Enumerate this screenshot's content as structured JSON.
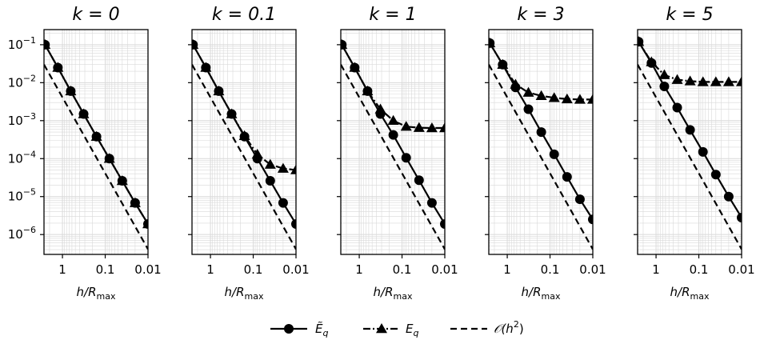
{
  "chart_data": [
    {
      "type": "line",
      "title": "k = 0",
      "xlabel": "h/R_max",
      "ylabel": "",
      "x_scale": "log",
      "x_reversed": true,
      "x_range": [
        2.7,
        0.01
      ],
      "y_scale": "log",
      "y_range": [
        3e-07,
        0.25
      ],
      "xticks": [
        "1",
        "0.1",
        "0.01"
      ],
      "yticks": [
        "10^-1",
        "10^-2",
        "10^-3",
        "10^-4",
        "10^-5",
        "10^-6"
      ],
      "grid": true,
      "x": [
        2.56,
        1.28,
        0.64,
        0.32,
        0.16,
        0.08,
        0.04,
        0.02,
        0.01
      ],
      "series": [
        {
          "name": "Ẽ_q",
          "values": [
            0.1,
            0.025,
            0.006,
            0.0015,
            0.00038,
            0.0001,
            2.6e-05,
            6.8e-06,
            1.9e-06
          ]
        },
        {
          "name": "E_q",
          "values": [
            0.1,
            0.025,
            0.006,
            0.0015,
            0.00038,
            0.0001,
            2.6e-05,
            6.8e-06,
            1.9e-06
          ]
        },
        {
          "name": "O(h^2)",
          "x": [
            2.7,
            0.01
          ],
          "values": [
            0.03,
            4.1e-07
          ]
        }
      ]
    },
    {
      "type": "line",
      "title": "k = 0.1",
      "xlabel": "h/R_max",
      "ylabel": "",
      "x_scale": "log",
      "x_reversed": true,
      "x_range": [
        2.7,
        0.01
      ],
      "y_scale": "log",
      "y_range": [
        3e-07,
        0.25
      ],
      "xticks": [
        "1",
        "0.1",
        "0.01"
      ],
      "yticks": [
        "10^-1",
        "10^-2",
        "10^-3",
        "10^-4",
        "10^-5",
        "10^-6"
      ],
      "grid": true,
      "x": [
        2.56,
        1.28,
        0.64,
        0.32,
        0.16,
        0.08,
        0.04,
        0.02,
        0.01
      ],
      "series": [
        {
          "name": "Ẽ_q",
          "values": [
            0.1,
            0.025,
            0.006,
            0.0015,
            0.00038,
            0.0001,
            2.6e-05,
            6.8e-06,
            1.9e-06
          ]
        },
        {
          "name": "E_q",
          "values": [
            0.1,
            0.025,
            0.006,
            0.0015,
            0.0004,
            0.00013,
            7e-05,
            5.5e-05,
            5e-05
          ]
        },
        {
          "name": "O(h^2)",
          "x": [
            2.7,
            0.01
          ],
          "values": [
            0.03,
            4.1e-07
          ]
        }
      ]
    },
    {
      "type": "line",
      "title": "k = 1",
      "xlabel": "h/R_max",
      "ylabel": "",
      "x_scale": "log",
      "x_reversed": true,
      "x_range": [
        2.7,
        0.01
      ],
      "y_scale": "log",
      "y_range": [
        3e-07,
        0.25
      ],
      "xticks": [
        "1",
        "0.1",
        "0.01"
      ],
      "yticks": [
        "10^-1",
        "10^-2",
        "10^-3",
        "10^-4",
        "10^-5",
        "10^-6"
      ],
      "grid": true,
      "x": [
        2.56,
        1.28,
        0.64,
        0.32,
        0.16,
        0.08,
        0.04,
        0.02,
        0.01
      ],
      "series": [
        {
          "name": "Ẽ_q",
          "values": [
            0.1,
            0.025,
            0.006,
            0.0015,
            0.00042,
            0.000105,
            2.7e-05,
            6.8e-06,
            1.9e-06
          ]
        },
        {
          "name": "E_q",
          "values": [
            0.1,
            0.025,
            0.006,
            0.002,
            0.001,
            0.0007,
            0.00065,
            0.00064,
            0.00064
          ]
        },
        {
          "name": "O(h^2)",
          "x": [
            2.7,
            0.01
          ],
          "values": [
            0.03,
            4.1e-07
          ]
        }
      ]
    },
    {
      "type": "line",
      "title": "k = 3",
      "xlabel": "h/R_max",
      "ylabel": "",
      "x_scale": "log",
      "x_reversed": true,
      "x_range": [
        2.7,
        0.01
      ],
      "y_scale": "log",
      "y_range": [
        3e-07,
        0.25
      ],
      "xticks": [
        "1",
        "0.1",
        "0.01"
      ],
      "yticks": [
        "10^-1",
        "10^-2",
        "10^-3",
        "10^-4",
        "10^-5",
        "10^-6"
      ],
      "grid": true,
      "x": [
        2.56,
        1.28,
        0.64,
        0.32,
        0.16,
        0.08,
        0.04,
        0.02,
        0.01
      ],
      "series": [
        {
          "name": "Ẽ_q",
          "values": [
            0.11,
            0.03,
            0.0075,
            0.002,
            0.0005,
            0.00013,
            3.3e-05,
            8.5e-06,
            2.5e-06
          ]
        },
        {
          "name": "E_q",
          "values": [
            0.11,
            0.03,
            0.009,
            0.0055,
            0.0045,
            0.004,
            0.0037,
            0.0036,
            0.0036
          ]
        },
        {
          "name": "O(h^2)",
          "x": [
            2.7,
            0.01
          ],
          "values": [
            0.03,
            4.1e-07
          ]
        }
      ]
    },
    {
      "type": "line",
      "title": "k = 5",
      "xlabel": "h/R_max",
      "ylabel": "",
      "x_scale": "log",
      "x_reversed": true,
      "x_range": [
        2.7,
        0.01
      ],
      "y_scale": "log",
      "y_range": [
        3e-07,
        0.25
      ],
      "xticks": [
        "1",
        "0.1",
        "0.01"
      ],
      "yticks": [
        "10^-1",
        "10^-2",
        "10^-3",
        "10^-4",
        "10^-5",
        "10^-6"
      ],
      "grid": true,
      "x": [
        2.56,
        1.28,
        0.64,
        0.32,
        0.16,
        0.08,
        0.04,
        0.02,
        0.01
      ],
      "series": [
        {
          "name": "Ẽ_q",
          "values": [
            0.12,
            0.033,
            0.008,
            0.0022,
            0.00057,
            0.00015,
            3.8e-05,
            1e-05,
            2.8e-06
          ]
        },
        {
          "name": "E_q",
          "values": [
            0.12,
            0.035,
            0.016,
            0.012,
            0.011,
            0.0105,
            0.0105,
            0.0105,
            0.0105
          ]
        },
        {
          "name": "O(h^2)",
          "x": [
            2.7,
            0.01
          ],
          "values": [
            0.03,
            4.1e-07
          ]
        }
      ]
    }
  ],
  "legend": {
    "placement": "bottom-center",
    "entries": [
      {
        "label": "Ẽq",
        "style": "solid-circle"
      },
      {
        "label": "Eq",
        "style": "dashdot-triangle"
      },
      {
        "label": "𝒪(h²)",
        "style": "dashed"
      }
    ]
  },
  "text": {
    "titles": [
      "k = 0",
      "k = 0.1",
      "k = 1",
      "k = 3",
      "k = 5"
    ],
    "xtick_labels": [
      "1",
      "0.1",
      "0.01"
    ],
    "ytick_mantissa": "10",
    "ytick_exponents": [
      "−1",
      "−2",
      "−3",
      "−4",
      "−5",
      "−6"
    ],
    "xlabel_main": "h/R",
    "xlabel_sub": "max",
    "legend_e_tilde": "Ẽ",
    "legend_e": "E",
    "legend_sub": "q",
    "legend_oh": "𝒪(h",
    "legend_oh_exp": "2",
    "legend_oh_close": ")"
  },
  "colors": {
    "line": "#000000",
    "grid": "#d9d9d9",
    "background": "#ffffff"
  }
}
